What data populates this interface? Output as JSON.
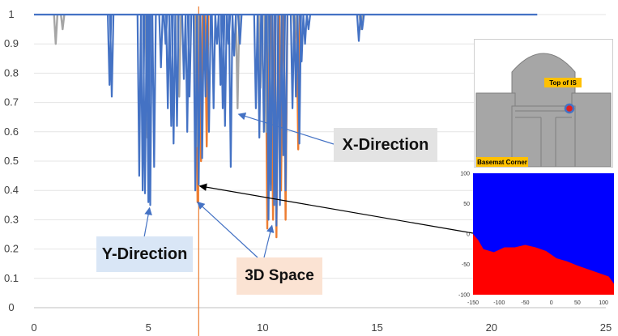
{
  "chart_data": {
    "type": "line",
    "title": "",
    "xlabel": "",
    "ylabel": "",
    "xlim": [
      0,
      25
    ],
    "ylim": [
      0,
      1
    ],
    "x_ticks": [
      "0",
      "5",
      "10",
      "15",
      "20",
      "25"
    ],
    "y_ticks": [
      "0",
      "0.1",
      "0.2",
      "0.3",
      "0.4",
      "0.5",
      "0.6",
      "0.7",
      "0.8",
      "0.9",
      "1"
    ],
    "grid": true,
    "vertical_marker_x": 7.2,
    "series": [
      {
        "id": "3d-space",
        "color": "#ed7d31",
        "dips": [
          [
            7.15,
            0.36
          ],
          [
            7.3,
            0.5
          ],
          [
            7.55,
            0.55
          ],
          [
            10.2,
            0.27
          ],
          [
            10.45,
            0.3
          ],
          [
            10.6,
            0.24
          ],
          [
            10.8,
            0.4
          ],
          [
            11.0,
            0.3
          ],
          [
            11.55,
            0.54
          ]
        ]
      },
      {
        "id": "x-direction",
        "color": "#a5a5a5",
        "dips": [
          [
            0.95,
            0.9
          ],
          [
            1.25,
            0.95
          ],
          [
            4.95,
            0.58
          ],
          [
            6.35,
            0.72
          ],
          [
            7.1,
            0.55
          ],
          [
            8.9,
            0.68
          ],
          [
            9.9,
            0.75
          ],
          [
            10.15,
            0.6
          ],
          [
            10.35,
            0.42
          ],
          [
            11.4,
            0.92
          ],
          [
            14.3,
            0.95
          ]
        ]
      },
      {
        "id": "y-direction",
        "color": "#4472c4",
        "end_x": 22.0,
        "dips": [
          [
            3.3,
            0.76
          ],
          [
            3.4,
            0.72
          ],
          [
            4.6,
            0.45
          ],
          [
            4.75,
            0.4
          ],
          [
            4.85,
            0.39
          ],
          [
            5.0,
            0.36
          ],
          [
            5.08,
            0.35
          ],
          [
            5.25,
            0.48
          ],
          [
            5.55,
            0.82
          ],
          [
            5.75,
            0.9
          ],
          [
            5.85,
            0.68
          ],
          [
            6.0,
            0.62
          ],
          [
            6.1,
            0.56
          ],
          [
            6.25,
            0.62
          ],
          [
            6.55,
            0.78
          ],
          [
            6.7,
            0.6
          ],
          [
            6.8,
            0.72
          ],
          [
            7.05,
            0.4
          ],
          [
            7.2,
            0.42
          ],
          [
            7.35,
            0.51
          ],
          [
            7.5,
            0.72
          ],
          [
            7.65,
            0.6
          ],
          [
            7.85,
            0.68
          ],
          [
            8.0,
            0.9
          ],
          [
            8.15,
            0.76
          ],
          [
            8.25,
            0.68
          ],
          [
            8.35,
            0.62
          ],
          [
            8.5,
            0.9
          ],
          [
            8.6,
            0.48
          ],
          [
            8.75,
            0.86
          ],
          [
            9.0,
            0.9
          ],
          [
            9.7,
            0.68
          ],
          [
            9.85,
            0.58
          ],
          [
            10.05,
            0.6
          ],
          [
            10.25,
            0.3
          ],
          [
            10.35,
            0.4
          ],
          [
            10.5,
            0.35
          ],
          [
            10.6,
            0.28
          ],
          [
            10.75,
            0.35
          ],
          [
            10.9,
            0.52
          ],
          [
            11.0,
            0.4
          ],
          [
            11.3,
            0.68
          ],
          [
            11.45,
            0.72
          ],
          [
            11.6,
            0.56
          ],
          [
            11.7,
            0.84
          ],
          [
            11.85,
            0.9
          ],
          [
            12.0,
            0.95
          ],
          [
            14.2,
            0.91
          ],
          [
            14.35,
            0.95
          ]
        ]
      }
    ]
  },
  "annotations": {
    "x_direction": "X-Direction",
    "y_direction": "Y-Direction",
    "three_d_space": "3D Space"
  },
  "inset_building": {
    "top_label": "Top of IS",
    "corner_label": "Basemat Corner",
    "colors": {
      "building": "#a6a6a6",
      "label_bg": "#ffc000",
      "marker_ring": "#4472c4",
      "marker_dot": "#e02020"
    }
  },
  "inset_heatmap": {
    "type": "heatmap",
    "xlim": [
      -150,
      120
    ],
    "ylim": [
      -100,
      100
    ],
    "x_ticks": [
      "-150",
      "-100",
      "-50",
      "0",
      "50",
      "100"
    ],
    "y_ticks": [
      "100",
      "50",
      "0",
      "-50",
      "-100"
    ],
    "colors": {
      "upper": "#0000ff",
      "lower": "#ff0000"
    },
    "boundary": [
      [
        -150,
        0
      ],
      [
        -140,
        -8
      ],
      [
        -130,
        -25
      ],
      [
        -110,
        -28
      ],
      [
        -90,
        -22
      ],
      [
        -70,
        -20
      ],
      [
        -50,
        -18
      ],
      [
        -30,
        -20
      ],
      [
        -10,
        -28
      ],
      [
        10,
        -38
      ],
      [
        30,
        -45
      ],
      [
        50,
        -50
      ],
      [
        70,
        -58
      ],
      [
        90,
        -62
      ],
      [
        110,
        -70
      ],
      [
        120,
        -80
      ]
    ]
  }
}
